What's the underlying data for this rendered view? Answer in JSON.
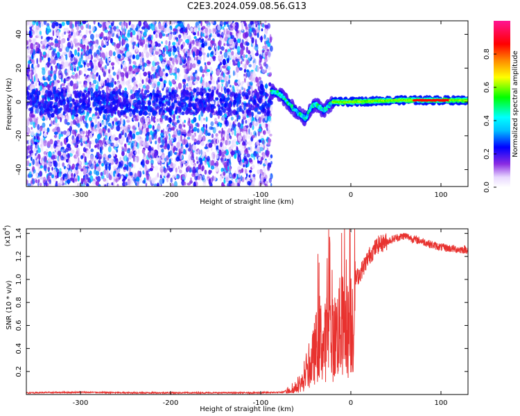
{
  "title": "C2E3.2024.059.08.56.G13",
  "chart_data": [
    {
      "type": "heatmap",
      "xlabel": "Height of straight line (km)",
      "ylabel": "Frequency (Hz)",
      "xlim": [
        -360,
        130
      ],
      "ylim": [
        -50,
        48
      ],
      "xticks": [
        -300,
        -200,
        -100,
        0,
        100
      ],
      "yticks": [
        -40,
        -20,
        0,
        20,
        40
      ],
      "grid": false,
      "colorbar": {
        "label": "Normalized spectral amplitude",
        "range": [
          0.0,
          1.0
        ],
        "ticks": [
          "0.0",
          "0.2",
          "0.4",
          "0.6",
          "0.8"
        ]
      },
      "regions": [
        {
          "x_range": [
            -360,
            -88
          ],
          "description_values": {
            "mean_amplitude": 0.15,
            "frequency_range": [
              -50,
              48
            ]
          }
        },
        {
          "x_range": [
            -88,
            -20
          ],
          "trace": [
            [
              -88,
              6
            ],
            [
              -80,
              5
            ],
            [
              -70,
              0
            ],
            [
              -60,
              -6
            ],
            [
              -50,
              -10
            ],
            [
              -45,
              -4
            ],
            [
              -40,
              -1
            ],
            [
              -30,
              -5
            ],
            [
              -20,
              0
            ]
          ],
          "peak_amplitude": 0.45
        },
        {
          "x_range": [
            -20,
            130
          ],
          "trace": [
            [
              -20,
              0
            ],
            [
              0,
              0
            ],
            [
              50,
              1
            ],
            [
              100,
              1
            ],
            [
              130,
              1
            ]
          ],
          "peak_amplitude": 0.95
        }
      ]
    },
    {
      "type": "line",
      "xlabel": "Height of straight line (km)",
      "ylabel": "SNR (10 * v/v)",
      "y_multiplier": "(x10",
      "y_multiplier_exp": "4",
      "y_multiplier_close": ")",
      "xlim": [
        -360,
        130
      ],
      "ylim": [
        0,
        14400
      ],
      "xticks": [
        -300,
        -200,
        -100,
        0,
        100
      ],
      "yticks": [
        "0.2",
        "0.4",
        "0.6",
        "0.8",
        "1.0",
        "1.2",
        "1.4"
      ],
      "grid": false,
      "series": [
        {
          "color": "#e8322f",
          "x": [
            -360,
            -300,
            -250,
            -200,
            -150,
            -100,
            -75,
            -60,
            -50,
            -45,
            -40,
            -35,
            -30,
            -25,
            -20,
            -15,
            -10,
            -5,
            0,
            10,
            20,
            30,
            40,
            50,
            60,
            70,
            80,
            90,
            100,
            110,
            120,
            130
          ],
          "y": [
            150,
            200,
            150,
            150,
            150,
            150,
            200,
            800,
            2000,
            3500,
            5500,
            7500,
            6000,
            8500,
            7000,
            8000,
            9000,
            7800,
            9500,
            10500,
            12000,
            13000,
            13300,
            13600,
            13800,
            13500,
            13300,
            13000,
            12800,
            12700,
            12600,
            12600
          ]
        }
      ]
    }
  ]
}
